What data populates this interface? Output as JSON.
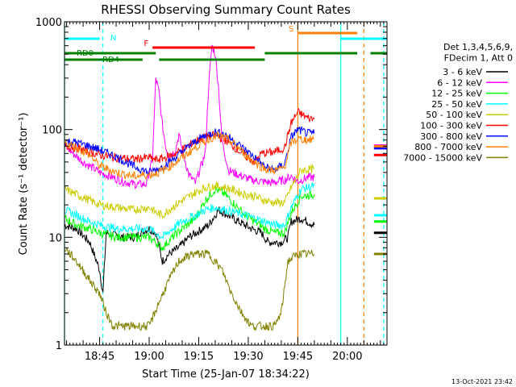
{
  "chart_data": {
    "type": "line",
    "title": "RHESSI Observing Summary Count Rates",
    "xlabel": "Start Time (25-Jan-07 18:34:22)",
    "ylabel": "Count Rate (s⁻¹ detector⁻¹)",
    "y_scale": "log",
    "ylim": [
      1,
      1000
    ],
    "xlim": [
      "18:34:22",
      "20:12:00"
    ],
    "x_ticks": [
      "18:45",
      "19:00",
      "19:15",
      "19:30",
      "19:45",
      "20:00"
    ],
    "y_ticks": [
      "1",
      "10",
      "100",
      "1000"
    ],
    "grid": false,
    "legend_position": "right",
    "legend_header": [
      "Det 1,3,4,5,6,9,",
      "FDecim 1, Att 0"
    ],
    "footer_date": "13-Oct-2021 23:42",
    "series": [
      {
        "name": "3 - 6 keV",
        "color": "#000000",
        "points": [
          [
            "18:34:22",
            13
          ],
          [
            "18:38",
            12
          ],
          [
            "18:42",
            9
          ],
          [
            "18:45",
            5
          ],
          [
            "18:46",
            3
          ],
          [
            "18:47",
            11
          ],
          [
            "18:52",
            10
          ],
          [
            "18:56",
            10
          ],
          [
            "18:57",
            11
          ],
          [
            "19:00",
            12
          ],
          [
            "19:02",
            11
          ],
          [
            "19:04",
            6
          ],
          [
            "19:06",
            7
          ],
          [
            "19:09",
            8
          ],
          [
            "19:12",
            10
          ],
          [
            "19:18",
            13
          ],
          [
            "19:21",
            18
          ],
          [
            "19:24",
            16
          ],
          [
            "19:27",
            14
          ],
          [
            "19:31",
            12
          ],
          [
            "19:34",
            11
          ],
          [
            "19:36",
            9
          ],
          [
            "19:40",
            9
          ],
          [
            "19:42",
            10
          ],
          [
            "19:43",
            14
          ],
          [
            "19:46",
            15
          ],
          [
            "19:50",
            13
          ]
        ]
      },
      {
        "name": "6 - 12 keV",
        "color": "#ff00ff",
        "points": [
          [
            "18:34:22",
            70
          ],
          [
            "18:37",
            60
          ],
          [
            "18:40",
            50
          ],
          [
            "18:43",
            44
          ],
          [
            "18:45",
            40
          ],
          [
            "18:48",
            37
          ],
          [
            "18:52",
            33
          ],
          [
            "18:56",
            31
          ],
          [
            "18:59",
            31
          ],
          [
            "19:01",
            52
          ],
          [
            "19:02",
            300
          ],
          [
            "19:03",
            220
          ],
          [
            "19:04",
            110
          ],
          [
            "19:05",
            70
          ],
          [
            "19:06",
            55
          ],
          [
            "19:08",
            65
          ],
          [
            "19:09",
            90
          ],
          [
            "19:10",
            65
          ],
          [
            "19:12",
            38
          ],
          [
            "19:14",
            32
          ],
          [
            "19:17",
            60
          ],
          [
            "19:18",
            250
          ],
          [
            "19:19",
            600
          ],
          [
            "19:20",
            500
          ],
          [
            "19:21",
            250
          ],
          [
            "19:22",
            80
          ],
          [
            "19:24",
            42
          ],
          [
            "19:27",
            38
          ],
          [
            "19:31",
            34
          ],
          [
            "19:34",
            33
          ],
          [
            "19:37",
            32
          ],
          [
            "19:41",
            34
          ],
          [
            "19:43",
            37
          ],
          [
            "19:45",
            33
          ],
          [
            "19:46",
            34
          ],
          [
            "19:48",
            36
          ],
          [
            "19:50",
            36
          ]
        ]
      },
      {
        "name": "12 - 25 keV",
        "color": "#00ff00",
        "points": [
          [
            "18:34:22",
            15
          ],
          [
            "18:38",
            13
          ],
          [
            "18:42",
            12
          ],
          [
            "18:45",
            11
          ],
          [
            "18:50",
            10
          ],
          [
            "18:55",
            10
          ],
          [
            "19:00",
            10
          ],
          [
            "19:02",
            9
          ],
          [
            "19:04",
            8
          ],
          [
            "19:07",
            10
          ],
          [
            "19:10",
            12
          ],
          [
            "19:14",
            15
          ],
          [
            "19:17",
            22
          ],
          [
            "19:20",
            28
          ],
          [
            "19:23",
            25
          ],
          [
            "19:26",
            20
          ],
          [
            "19:29",
            16
          ],
          [
            "19:32",
            14
          ],
          [
            "19:35",
            12
          ],
          [
            "19:38",
            11
          ],
          [
            "19:41",
            11
          ],
          [
            "19:43",
            17
          ],
          [
            "19:46",
            24
          ],
          [
            "19:50",
            25
          ]
        ]
      },
      {
        "name": "25 - 50 keV",
        "color": "#00ffff",
        "points": [
          [
            "18:34:22",
            18
          ],
          [
            "18:38",
            16
          ],
          [
            "18:42",
            14
          ],
          [
            "18:45",
            13
          ],
          [
            "18:50",
            12
          ],
          [
            "18:55",
            12
          ],
          [
            "19:00",
            12
          ],
          [
            "19:02",
            11
          ],
          [
            "19:04",
            10
          ],
          [
            "19:07",
            12
          ],
          [
            "19:10",
            14
          ],
          [
            "19:14",
            16
          ],
          [
            "19:17",
            18
          ],
          [
            "19:20",
            19
          ],
          [
            "19:23",
            18
          ],
          [
            "19:26",
            17
          ],
          [
            "19:29",
            16
          ],
          [
            "19:32",
            15
          ],
          [
            "19:35",
            14
          ],
          [
            "19:38",
            13
          ],
          [
            "19:41",
            13
          ],
          [
            "19:43",
            19
          ],
          [
            "19:46",
            28
          ],
          [
            "19:50",
            30
          ]
        ]
      },
      {
        "name": "50 - 100 keV",
        "color": "#cccc00",
        "points": [
          [
            "18:34:22",
            28
          ],
          [
            "18:38",
            25
          ],
          [
            "18:42",
            22
          ],
          [
            "18:45",
            20
          ],
          [
            "18:50",
            19
          ],
          [
            "18:55",
            18
          ],
          [
            "19:00",
            19
          ],
          [
            "19:02",
            17
          ],
          [
            "19:04",
            16
          ],
          [
            "19:07",
            19
          ],
          [
            "19:10",
            22
          ],
          [
            "19:14",
            26
          ],
          [
            "19:17",
            29
          ],
          [
            "19:20",
            30
          ],
          [
            "19:23",
            29
          ],
          [
            "19:26",
            27
          ],
          [
            "19:29",
            25
          ],
          [
            "19:32",
            24
          ],
          [
            "19:35",
            22
          ],
          [
            "19:38",
            21
          ],
          [
            "19:41",
            21
          ],
          [
            "19:43",
            29
          ],
          [
            "19:46",
            42
          ],
          [
            "19:50",
            43
          ]
        ]
      },
      {
        "name": "100 - 300 keV",
        "color": "#ff0000",
        "points": [
          [
            "18:34:22",
            70
          ],
          [
            "18:38",
            68
          ],
          [
            "18:42",
            62
          ],
          [
            "18:45",
            58
          ],
          [
            "18:50",
            55
          ],
          [
            "18:55",
            53
          ],
          [
            "19:00",
            55
          ],
          [
            "19:02",
            52
          ],
          [
            "19:05",
            55
          ],
          [
            "19:08",
            60
          ],
          [
            "19:11",
            68
          ],
          [
            "19:14",
            78
          ],
          [
            "19:17",
            86
          ],
          [
            "19:20",
            88
          ],
          [
            "19:23",
            80
          ],
          [
            "19:26",
            68
          ],
          [
            "19:29",
            57
          ],
          [
            "19:32",
            50
          ],
          [
            "19:34",
            60
          ],
          [
            "19:38",
            62
          ],
          [
            "19:41",
            68
          ],
          [
            "19:43",
            115
          ],
          [
            "19:45",
            145
          ],
          [
            "19:48",
            128
          ],
          [
            "19:50",
            125
          ]
        ]
      },
      {
        "name": "300 - 800 keV",
        "color": "#0000ff",
        "points": [
          [
            "18:34:22",
            78
          ],
          [
            "18:38",
            76
          ],
          [
            "18:42",
            70
          ],
          [
            "18:45",
            65
          ],
          [
            "18:50",
            56
          ],
          [
            "18:55",
            46
          ],
          [
            "19:00",
            40
          ],
          [
            "19:04",
            45
          ],
          [
            "19:08",
            55
          ],
          [
            "19:12",
            70
          ],
          [
            "19:16",
            85
          ],
          [
            "19:20",
            95
          ],
          [
            "19:23",
            90
          ],
          [
            "19:26",
            77
          ],
          [
            "19:29",
            65
          ],
          [
            "19:32",
            55
          ],
          [
            "19:35",
            45
          ],
          [
            "19:38",
            42
          ],
          [
            "19:41",
            48
          ],
          [
            "19:43",
            85
          ],
          [
            "19:45",
            100
          ],
          [
            "19:48",
            92
          ],
          [
            "19:50",
            92
          ]
        ]
      },
      {
        "name": "800 - 7000 keV",
        "color": "#ff8000",
        "points": [
          [
            "18:34:22",
            75
          ],
          [
            "18:38",
            68
          ],
          [
            "18:42",
            58
          ],
          [
            "18:45",
            46
          ],
          [
            "18:50",
            40
          ],
          [
            "18:55",
            37
          ],
          [
            "19:00",
            38
          ],
          [
            "19:03",
            40
          ],
          [
            "19:06",
            45
          ],
          [
            "19:10",
            55
          ],
          [
            "19:14",
            68
          ],
          [
            "19:18",
            82
          ],
          [
            "19:21",
            88
          ],
          [
            "19:24",
            80
          ],
          [
            "19:27",
            68
          ],
          [
            "19:30",
            55
          ],
          [
            "19:33",
            47
          ],
          [
            "19:36",
            42
          ],
          [
            "19:39",
            42
          ],
          [
            "19:41",
            45
          ],
          [
            "19:43",
            75
          ],
          [
            "19:45",
            82
          ],
          [
            "19:48",
            80
          ],
          [
            "19:50",
            82
          ]
        ]
      },
      {
        "name": "7000 - 15000 keV",
        "color": "#808000",
        "points": [
          [
            "18:34:22",
            8
          ],
          [
            "18:38",
            6
          ],
          [
            "18:42",
            4
          ],
          [
            "18:45",
            3
          ],
          [
            "18:47",
            2
          ],
          [
            "18:49",
            1.5
          ],
          [
            "19:00",
            1.5
          ],
          [
            "19:03",
            2.5
          ],
          [
            "19:06",
            4
          ],
          [
            "19:09",
            6
          ],
          [
            "19:13",
            7
          ],
          [
            "19:18",
            7
          ],
          [
            "19:22",
            5
          ],
          [
            "19:25",
            3
          ],
          [
            "19:28",
            2
          ],
          [
            "19:31",
            1.5
          ],
          [
            "19:38",
            1.5
          ],
          [
            "19:40",
            2
          ],
          [
            "19:42",
            6
          ],
          [
            "19:45",
            7
          ],
          [
            "19:50",
            7
          ]
        ]
      }
    ],
    "after_gap_points": {
      "x": "20:10",
      "values": [
        11,
        71,
        14,
        16,
        23,
        58,
        67,
        70,
        7
      ]
    },
    "status_bars": [
      {
        "label": "N",
        "color": "#00ffff",
        "segments": [
          [
            "18:34:22",
            "18:45"
          ],
          [
            "19:58",
            "20:12"
          ]
        ]
      },
      {
        "label": "RD0",
        "color": "#008000",
        "segments": [
          [
            "18:34:22",
            "19:02"
          ],
          [
            "19:35",
            "20:03"
          ],
          [
            "20:07",
            "20:12"
          ]
        ]
      },
      {
        "label": "RD4",
        "color": "#008000",
        "segments": [
          [
            "18:34:22",
            "18:58"
          ],
          [
            "19:03",
            "19:35"
          ]
        ]
      },
      {
        "label": "F",
        "color": "#ff0000",
        "segments": [
          [
            "19:01",
            "19:32"
          ]
        ]
      },
      {
        "label": "S",
        "color": "#ff8000",
        "segments": [
          [
            "19:45",
            "20:03"
          ]
        ]
      }
    ],
    "vertical_markers": [
      {
        "time": "18:34:22",
        "color": "#00ffff",
        "style": "solid"
      },
      {
        "time": "18:46",
        "color": "#00ffff",
        "style": "dashed"
      },
      {
        "time": "19:45",
        "color": "#ff8000",
        "style": "solid"
      },
      {
        "time": "19:58",
        "color": "#00ffff",
        "style": "solid"
      },
      {
        "time": "20:05",
        "color": "#ff8000",
        "style": "dashed"
      },
      {
        "time": "20:11",
        "color": "#00ffff",
        "style": "dashed"
      }
    ]
  }
}
